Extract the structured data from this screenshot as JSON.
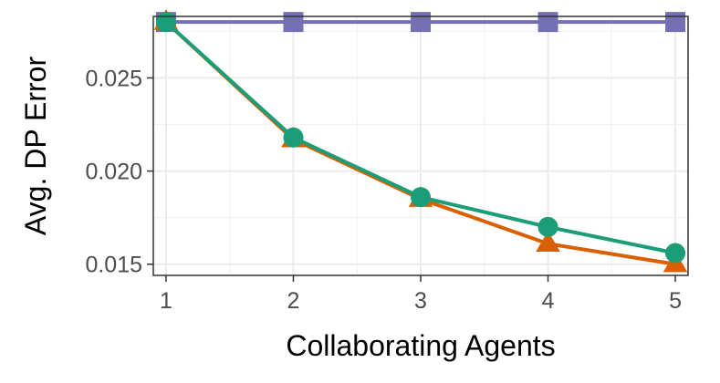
{
  "chart_data": {
    "type": "line",
    "title": "",
    "xlabel": "Collaborating Agents",
    "ylabel": "Avg. DP Error",
    "x": [
      1,
      2,
      3,
      4,
      5
    ],
    "xticks": [
      1,
      2,
      3,
      4,
      5
    ],
    "xtick_labels": [
      "1",
      "2",
      "3",
      "4",
      "5"
    ],
    "yticks": [
      0.015,
      0.02,
      0.025
    ],
    "ytick_labels": [
      "0.015",
      "0.020",
      "0.025"
    ],
    "xlim": [
      0.9,
      5.1
    ],
    "ylim": [
      0.0144,
      0.0283
    ],
    "grid": true,
    "legend": "none",
    "series": [
      {
        "color": "#7570B3",
        "marker": "square",
        "values": [
          0.028,
          0.028,
          0.028,
          0.028,
          0.028
        ]
      },
      {
        "color": "#D95F02",
        "marker": "triangle",
        "values": [
          0.028,
          0.0217,
          0.0185,
          0.0161,
          0.015
        ]
      },
      {
        "color": "#1B9E77",
        "marker": "circle",
        "values": [
          0.028,
          0.0218,
          0.0186,
          0.017,
          0.0156
        ]
      }
    ]
  }
}
